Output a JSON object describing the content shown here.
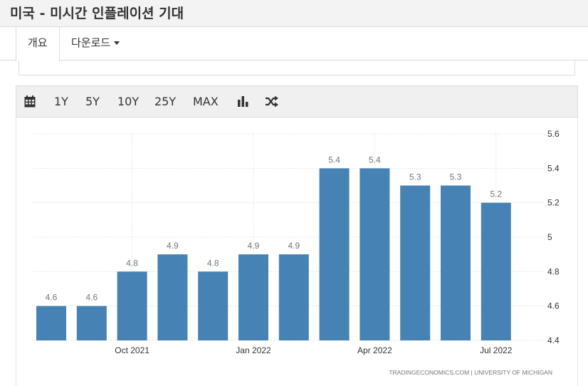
{
  "page": {
    "title": "미국 - 미시간 인플레이션 기대"
  },
  "tabs": [
    {
      "label": "개요",
      "active": true
    },
    {
      "label": "다운로드",
      "has_dropdown": true
    }
  ],
  "toolbar": {
    "items": [
      {
        "icon": "calendar-icon"
      },
      {
        "label": "1Y"
      },
      {
        "label": "5Y"
      },
      {
        "label": "10Y"
      },
      {
        "label": "25Y"
      },
      {
        "label": "MAX"
      },
      {
        "icon": "bar-chart-icon"
      },
      {
        "icon": "shuffle-icon"
      }
    ]
  },
  "chart_data": {
    "type": "bar",
    "categories": [
      "Aug 2021",
      "Sep 2021",
      "Oct 2021",
      "Nov 2021",
      "Dec 2021",
      "Jan 2022",
      "Feb 2022",
      "Mar 2022",
      "Apr 2022",
      "May 2022",
      "Jun 2022",
      "Jul 2022"
    ],
    "values": [
      4.6,
      4.6,
      4.8,
      4.9,
      4.8,
      4.9,
      4.9,
      5.4,
      5.4,
      5.3,
      5.3,
      5.2
    ],
    "data_labels": [
      "4.6",
      "4.6",
      "4.8",
      "4.9",
      "4.8",
      "4.9",
      "4.9",
      "5.4",
      "5.4",
      "5.3",
      "5.3",
      "5.2"
    ],
    "x_tick_labels": [
      {
        "index": 2,
        "label": "Oct 2021"
      },
      {
        "index": 5,
        "label": "Jan 2022"
      },
      {
        "index": 8,
        "label": "Apr 2022"
      },
      {
        "index": 11,
        "label": "Jul 2022"
      }
    ],
    "y_ticks": [
      4.4,
      4.6,
      4.8,
      5,
      5.2,
      5.4,
      5.6
    ],
    "y_tick_labels": [
      "4.4",
      "4.6",
      "4.8",
      "5",
      "5.2",
      "5.4",
      "5.6"
    ],
    "ylim": [
      4.4,
      5.6
    ],
    "y_axis_side": "right",
    "grid": true,
    "bar_color": "#4682b4",
    "source": "TRADINGECONOMICS.COM  |  UNIVERSITY OF MICHIGAN"
  }
}
